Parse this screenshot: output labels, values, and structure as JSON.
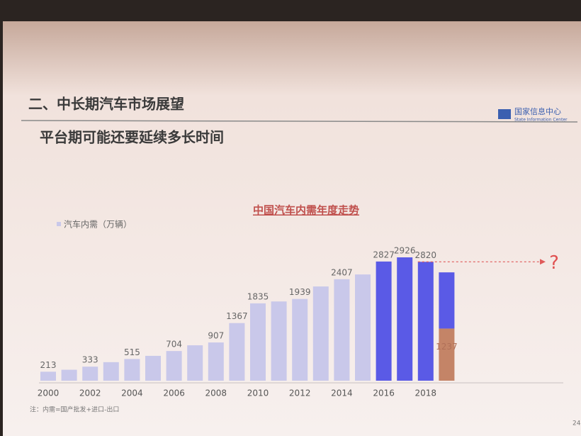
{
  "header": {
    "title": "二、中长期汽车市场展望",
    "subtitle": "平台期可能还要延续多长时间",
    "logo": "国家信息中心",
    "logo_en": "State Information Center"
  },
  "chart_data": {
    "type": "bar",
    "title": "中国汽车内需年度走势",
    "categories": [
      "2000",
      null,
      "2002",
      null,
      "2004",
      null,
      "2006",
      null,
      "2008",
      null,
      "2010",
      null,
      "2012",
      null,
      "2014",
      null,
      "2016",
      null,
      "2018",
      null
    ],
    "series": [
      {
        "color": "#c48467",
        "values": [
          null,
          null,
          null,
          null,
          null,
          null,
          null,
          null,
          null,
          null,
          null,
          null,
          null,
          null,
          null,
          null,
          null,
          null,
          null,
          1237
        ],
        "value_labels": [
          null,
          null,
          null,
          null,
          null,
          null,
          null,
          null,
          null,
          null,
          null,
          null,
          null,
          null,
          null,
          null,
          null,
          null,
          null,
          "1237"
        ]
      },
      {
        "name": "汽车内需（万辆）",
        "color": "#c9c8ea",
        "colors": [
          "#c9c8ea",
          "#c9c8ea",
          "#c9c8ea",
          "#c9c8ea",
          "#c9c8ea",
          "#c9c8ea",
          "#c9c8ea",
          "#c9c8ea",
          "#c9c8ea",
          "#c9c8ea",
          "#c9c8ea",
          "#c9c8ea",
          "#c9c8ea",
          "#c9c8ea",
          "#c9c8ea",
          "#c9c8ea",
          "#5a5ae6",
          "#5a5ae6",
          "#5a5ae6",
          "#5a5ae6"
        ],
        "values": [
          213,
          260,
          333,
          440,
          515,
          590,
          704,
          840,
          907,
          1367,
          1835,
          1880,
          1939,
          2235,
          2407,
          2520,
          2827,
          2926,
          2820,
          1333
        ],
        "value_labels": [
          "213",
          null,
          "333",
          null,
          "515",
          null,
          "704",
          null,
          "907",
          "1367",
          "1835",
          null,
          "1939",
          null,
          "2407",
          null,
          "2827",
          "2926",
          "2820",
          null
        ]
      }
    ],
    "annotation": "?",
    "note": "注：内需=国产批发+进口-出口",
    "page_number": "24"
  }
}
